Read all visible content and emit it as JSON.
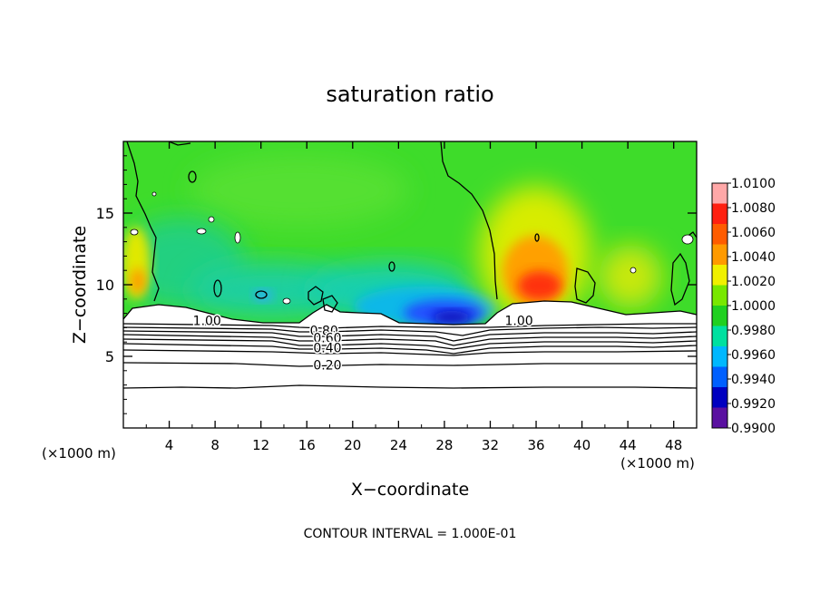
{
  "chart_data": {
    "type": "heatmap",
    "title": "saturation ratio",
    "xlabel": "X−coordinate",
    "ylabel": "Z−coordinate",
    "x_unit_left": "(×1000 m)",
    "x_unit_right": "(×1000 m)",
    "footer": "CONTOUR INTERVAL = 1.000E-01",
    "xlim": [
      0,
      50
    ],
    "ylim": [
      0,
      20
    ],
    "x_ticks": [
      4,
      8,
      12,
      16,
      20,
      24,
      28,
      32,
      36,
      40,
      44,
      48
    ],
    "x_tick_labels": [
      "4",
      "8",
      "12",
      "16",
      "20",
      "24",
      "28",
      "32",
      "36",
      "40",
      "44",
      "48"
    ],
    "y_ticks": [
      5,
      10,
      15
    ],
    "y_tick_labels": [
      "5",
      "10",
      "15"
    ],
    "colorbar": {
      "min": 0.99,
      "max": 1.01,
      "labels": [
        "1.0100",
        "1.0080",
        "1.0060",
        "1.0040",
        "1.0020",
        "1.0000",
        "0.9980",
        "0.9960",
        "0.9940",
        "0.9920",
        "0.9900"
      ],
      "colors": [
        "#ffa8a8",
        "#ff2010",
        "#ff5c00",
        "#ff9a00",
        "#f0f000",
        "#78e800",
        "#20d020",
        "#00e0a0",
        "#00b8ff",
        "#0060ff",
        "#0000c0",
        "#5a10a0"
      ]
    },
    "contour_labels": [
      {
        "text": "1.00",
        "x": 7.3,
        "z": 7.5
      },
      {
        "text": "1.00",
        "x": 34.5,
        "z": 7.5
      },
      {
        "text": "0.80",
        "x": 17.5,
        "z": 6.8
      },
      {
        "text": "0.60",
        "x": 17.8,
        "z": 6.3
      },
      {
        "text": "0.40",
        "x": 17.8,
        "z": 5.6
      },
      {
        "text": "0.20",
        "x": 17.8,
        "z": 4.4
      }
    ],
    "contour_levels_below": [
      3.0,
      4.5,
      5.4,
      5.8,
      6.1,
      6.4,
      6.7,
      7.0,
      7.2,
      7.45
    ],
    "field_regions": [
      {
        "name": "supersaturated-plume",
        "x_center": 36,
        "z_center": 10.5,
        "peak": 1.006
      },
      {
        "name": "subsaturated-pocket",
        "x_center": 28,
        "z_center": 8.2,
        "peak": 0.992
      },
      {
        "name": "background-free-troposphere",
        "value": 1.0
      }
    ]
  }
}
